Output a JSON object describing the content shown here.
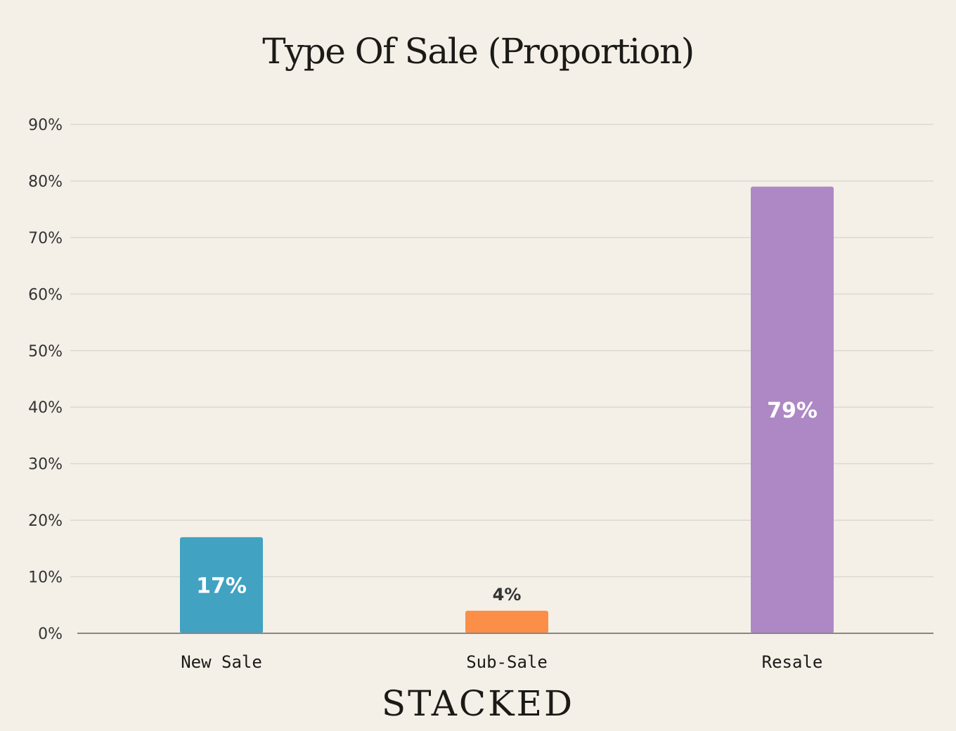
{
  "chart_data": {
    "type": "bar",
    "title": "Type Of Sale (Proportion)",
    "categories": [
      "New Sale",
      "Sub-Sale",
      "Resale"
    ],
    "values": [
      17,
      4,
      79
    ],
    "data_labels": [
      "17%",
      "4%",
      "79%"
    ],
    "label_inside": [
      true,
      false,
      true
    ],
    "colors": [
      "#41a2c2",
      "#fb8f48",
      "#ae88c5"
    ],
    "ylim": [
      0,
      90
    ],
    "yticks": [
      0,
      10,
      20,
      30,
      40,
      50,
      60,
      70,
      80,
      90
    ],
    "ytick_labels": [
      "0%",
      "10%",
      "20%",
      "30%",
      "40%",
      "50%",
      "60%",
      "70%",
      "80%",
      "90%"
    ],
    "grid": true,
    "xlabel": "",
    "ylabel": ""
  },
  "brand": "STACKED"
}
